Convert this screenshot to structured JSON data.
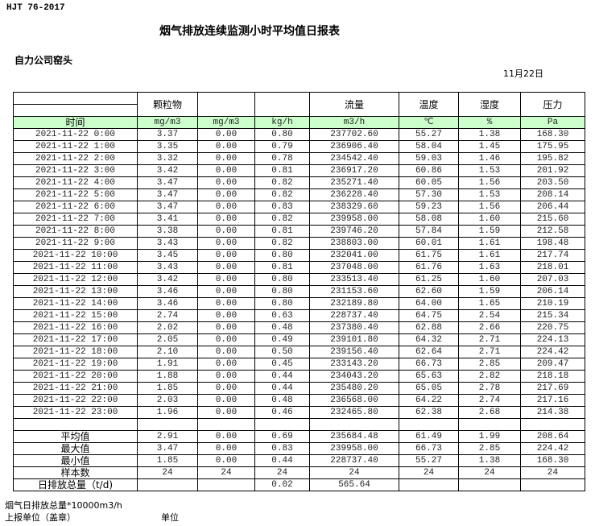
{
  "header": {
    "standard": "HJT  76-2017",
    "title": "烟气排放连续监测小时平均值日报表",
    "company": "自力公司窑头",
    "date": "11月22日"
  },
  "table": {
    "columns": [
      "",
      "颗粒物",
      "",
      "",
      "流量",
      "温度",
      "湿度",
      "压力"
    ],
    "units": [
      "时间",
      "mg/m3",
      "mg/m3",
      "kg/h",
      "m3/h",
      "℃",
      "%",
      "Pa"
    ],
    "rows": [
      [
        "2021-11-22 0:00",
        "3.37",
        "0.00",
        "0.80",
        "237702.60",
        "55.27",
        "1.38",
        "168.30"
      ],
      [
        "2021-11-22 1:00",
        "3.35",
        "0.00",
        "0.79",
        "236906.40",
        "58.04",
        "1.45",
        "175.95"
      ],
      [
        "2021-11-22 2:00",
        "3.32",
        "0.00",
        "0.78",
        "234542.40",
        "59.03",
        "1.46",
        "195.82"
      ],
      [
        "2021-11-22 3:00",
        "3.42",
        "0.00",
        "0.81",
        "236917.20",
        "60.86",
        "1.53",
        "201.92"
      ],
      [
        "2021-11-22 4:00",
        "3.47",
        "0.00",
        "0.82",
        "235271.40",
        "60.05",
        "1.56",
        "203.50"
      ],
      [
        "2021-11-22 5:00",
        "3.47",
        "0.00",
        "0.82",
        "236228.40",
        "57.30",
        "1.53",
        "208.14"
      ],
      [
        "2021-11-22 6:00",
        "3.47",
        "0.00",
        "0.83",
        "238329.60",
        "59.23",
        "1.56",
        "206.44"
      ],
      [
        "2021-11-22 7:00",
        "3.41",
        "0.00",
        "0.82",
        "239958.00",
        "58.08",
        "1.60",
        "215.60"
      ],
      [
        "2021-11-22 8:00",
        "3.38",
        "0.00",
        "0.81",
        "239746.20",
        "57.84",
        "1.59",
        "212.58"
      ],
      [
        "2021-11-22 9:00",
        "3.43",
        "0.00",
        "0.82",
        "238803.00",
        "60.01",
        "1.61",
        "198.48"
      ],
      [
        "2021-11-22 10:00",
        "3.45",
        "0.00",
        "0.80",
        "232041.00",
        "61.75",
        "1.61",
        "217.74"
      ],
      [
        "2021-11-22 11:00",
        "3.43",
        "0.00",
        "0.81",
        "237048.00",
        "61.76",
        "1.63",
        "218.01"
      ],
      [
        "2021-11-22 12:00",
        "3.42",
        "0.00",
        "0.80",
        "233513.40",
        "61.25",
        "1.60",
        "207.03"
      ],
      [
        "2021-11-22 13:00",
        "3.46",
        "0.00",
        "0.80",
        "231153.60",
        "62.60",
        "1.59",
        "206.14"
      ],
      [
        "2021-11-22 14:00",
        "3.46",
        "0.00",
        "0.80",
        "232189.80",
        "64.00",
        "1.65",
        "210.19"
      ],
      [
        "2021-11-22 15:00",
        "2.74",
        "0.00",
        "0.63",
        "228737.40",
        "64.75",
        "2.54",
        "215.34"
      ],
      [
        "2021-11-22 16:00",
        "2.02",
        "0.00",
        "0.48",
        "237380.40",
        "62.88",
        "2.66",
        "220.75"
      ],
      [
        "2021-11-22 17:00",
        "2.05",
        "0.00",
        "0.49",
        "239101.80",
        "64.32",
        "2.71",
        "224.13"
      ],
      [
        "2021-11-22 18:00",
        "2.10",
        "0.00",
        "0.50",
        "239156.40",
        "62.64",
        "2.71",
        "224.42"
      ],
      [
        "2021-11-22 19:00",
        "1.91",
        "0.00",
        "0.45",
        "233143.20",
        "66.73",
        "2.85",
        "209.47"
      ],
      [
        "2021-11-22 20:00",
        "1.88",
        "0.00",
        "0.44",
        "234043.20",
        "65.63",
        "2.82",
        "218.18"
      ],
      [
        "2021-11-22 21:00",
        "1.85",
        "0.00",
        "0.44",
        "235480.20",
        "65.05",
        "2.78",
        "217.69"
      ],
      [
        "2021-11-22 22:00",
        "2.03",
        "0.00",
        "0.48",
        "236568.00",
        "64.22",
        "2.74",
        "217.16"
      ],
      [
        "2021-11-22 23:00",
        "1.96",
        "0.00",
        "0.46",
        "232465.80",
        "62.38",
        "2.68",
        "214.38"
      ]
    ],
    "summary": [
      [
        "平均值",
        "2.91",
        "0.00",
        "0.69",
        "235684.48",
        "61.49",
        "1.99",
        "208.64"
      ],
      [
        "最大值",
        "3.47",
        "0.00",
        "0.83",
        "239958.00",
        "66.73",
        "2.85",
        "224.42"
      ],
      [
        "最小值",
        "1.85",
        "0.00",
        "0.44",
        "228737.40",
        "55.27",
        "1.38",
        "168.30"
      ],
      [
        "样本数",
        "24",
        "24",
        "24",
        "24",
        "24",
        "24",
        "24"
      ],
      [
        "日排放总量（t/d)",
        "",
        "",
        "0.02",
        "565.64",
        "",
        "",
        ""
      ]
    ]
  },
  "footer": {
    "note": "烟气日排放总量*10000m3/h",
    "reporter": "上报单位（盖章）",
    "unit": "单位"
  },
  "colors": {
    "unit_row_bg": "#ccffcc"
  }
}
